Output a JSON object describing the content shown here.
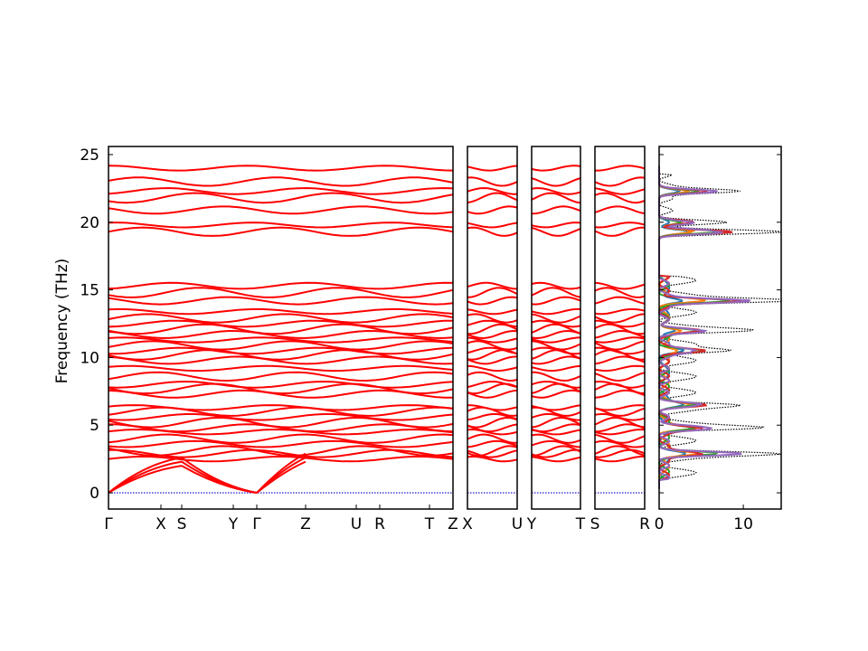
{
  "chart_data": {
    "type": "line",
    "ylabel": "Frequency (THz)",
    "ylim": [
      -1.2,
      25.6
    ],
    "yticks": [
      0,
      5,
      10,
      15,
      20,
      25
    ],
    "grid": false,
    "colors": {
      "bands": "#ff0000",
      "zero_line": "#0000cc",
      "dos_total": "#000000",
      "dos_projected": [
        "#1f77b4",
        "#ff7f0e",
        "#2ca02c",
        "#d62728",
        "#9467bd"
      ]
    },
    "band_panels": [
      {
        "labels": [
          "Γ",
          "X",
          "S",
          "Y",
          "Γ",
          "Z",
          "U",
          "R",
          "T",
          "Z"
        ]
      },
      {
        "labels": [
          "X",
          "U"
        ]
      },
      {
        "labels": [
          "Y",
          "T"
        ]
      },
      {
        "labels": [
          "S",
          "R"
        ]
      }
    ],
    "band_levels": [
      2.5,
      2.9,
      3.1,
      3.6,
      4.0,
      4.5,
      4.8,
      5.2,
      5.6,
      6.0,
      6.3,
      7.3,
      7.7,
      8.0,
      8.6,
      9.2,
      9.8,
      10.2,
      10.5,
      10.9,
      11.3,
      11.7,
      12.1,
      12.5,
      12.9,
      13.4,
      14.2,
      14.8,
      15.3,
      19.3,
      19.8,
      20.9,
      21.8,
      22.3,
      23.0,
      24.0
    ],
    "dos": {
      "xlim": [
        0,
        14.5
      ],
      "xticks": [
        0,
        10
      ],
      "total_peaks": [
        {
          "freq": 2.9,
          "value": 11.5
        },
        {
          "freq": 4.8,
          "value": 9.5
        },
        {
          "freq": 6.5,
          "value": 7.0
        },
        {
          "freq": 10.5,
          "value": 8.0
        },
        {
          "freq": 12.0,
          "value": 7.5
        },
        {
          "freq": 14.2,
          "value": 14.5
        },
        {
          "freq": 19.3,
          "value": 14.0
        },
        {
          "freq": 20.0,
          "value": 6.5
        },
        {
          "freq": 22.3,
          "value": 9.5
        }
      ]
    }
  }
}
